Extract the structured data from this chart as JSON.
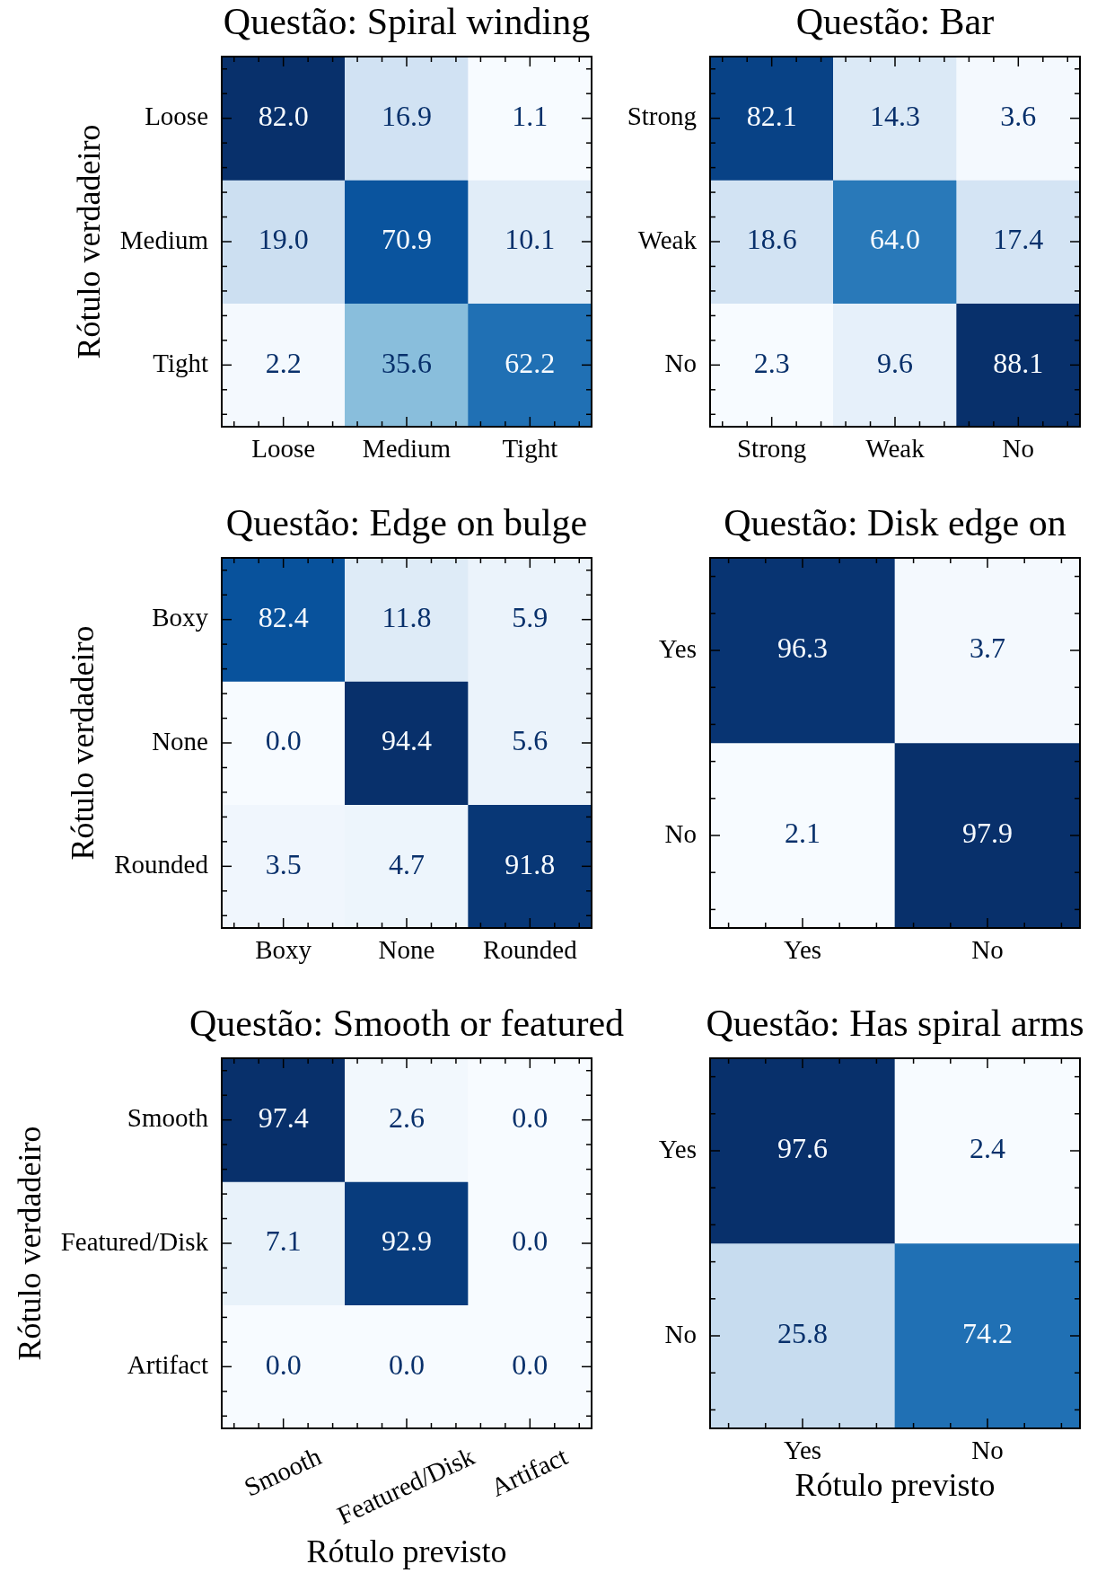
{
  "chart_data": [
    {
      "type": "heatmap",
      "title": "Questão: Spiral winding",
      "ylabel": "Rótulo verdadeiro",
      "categories": [
        "Loose",
        "Medium",
        "Tight"
      ],
      "y_categories": [
        "Loose",
        "Medium",
        "Tight"
      ],
      "cells": [
        [
          82.0,
          16.9,
          1.1
        ],
        [
          19.0,
          70.9,
          10.1
        ],
        [
          2.2,
          35.6,
          62.2
        ]
      ],
      "cell_labels": [
        [
          "82.0",
          "16.9",
          "1.1"
        ],
        [
          "19.0",
          "70.9",
          "10.1"
        ],
        [
          "2.2",
          "35.6",
          "62.2"
        ]
      ]
    },
    {
      "type": "heatmap",
      "title": "Questão: Bar",
      "categories": [
        "Strong",
        "Weak",
        "No"
      ],
      "y_categories": [
        "Strong",
        "Weak",
        "No"
      ],
      "cells": [
        [
          82.1,
          14.3,
          3.6
        ],
        [
          18.6,
          64.0,
          17.4
        ],
        [
          2.3,
          9.6,
          88.1
        ]
      ],
      "cell_labels": [
        [
          "82.1",
          "14.3",
          "3.6"
        ],
        [
          "18.6",
          "64.0",
          "17.4"
        ],
        [
          "2.3",
          "9.6",
          "88.1"
        ]
      ]
    },
    {
      "type": "heatmap",
      "title": "Questão: Edge on bulge",
      "ylabel": "Rótulo verdadeiro",
      "categories": [
        "Boxy",
        "None",
        "Rounded"
      ],
      "y_categories": [
        "Boxy",
        "None",
        "Rounded"
      ],
      "cells": [
        [
          82.4,
          11.8,
          5.9
        ],
        [
          0.0,
          94.4,
          5.6
        ],
        [
          3.5,
          4.7,
          91.8
        ]
      ],
      "cell_labels": [
        [
          "82.4",
          "11.8",
          "5.9"
        ],
        [
          "0.0",
          "94.4",
          "5.6"
        ],
        [
          "3.5",
          "4.7",
          "91.8"
        ]
      ]
    },
    {
      "type": "heatmap",
      "title": "Questão: Disk edge on",
      "categories": [
        "Yes",
        "No"
      ],
      "y_categories": [
        "Yes",
        "No"
      ],
      "cells": [
        [
          96.3,
          3.7
        ],
        [
          2.1,
          97.9
        ]
      ],
      "cell_labels": [
        [
          "96.3",
          "3.7"
        ],
        [
          "2.1",
          "97.9"
        ]
      ]
    },
    {
      "type": "heatmap",
      "title": "Questão: Smooth or featured",
      "xlabel": "Rótulo previsto",
      "ylabel": "Rótulo verdadeiro",
      "categories": [
        "Smooth",
        "Featured/Disk",
        "Artifact"
      ],
      "y_categories": [
        "Smooth",
        "Featured/Disk",
        "Artifact"
      ],
      "cells": [
        [
          97.4,
          2.6,
          0.0
        ],
        [
          7.1,
          92.9,
          0.0
        ],
        [
          0.0,
          0.0,
          0.0
        ]
      ],
      "cell_labels": [
        [
          "97.4",
          "2.6",
          "0.0"
        ],
        [
          "7.1",
          "92.9",
          "0.0"
        ],
        [
          "0.0",
          "0.0",
          "0.0"
        ]
      ]
    },
    {
      "type": "heatmap",
      "title": "Questão: Has spiral arms",
      "xlabel": "Rótulo previsto",
      "categories": [
        "Yes",
        "No"
      ],
      "y_categories": [
        "Yes",
        "No"
      ],
      "cells": [
        [
          97.6,
          2.4
        ],
        [
          25.8,
          74.2
        ]
      ],
      "cell_labels": [
        [
          "97.6",
          "2.4"
        ],
        [
          "25.8",
          "74.2"
        ]
      ]
    }
  ]
}
